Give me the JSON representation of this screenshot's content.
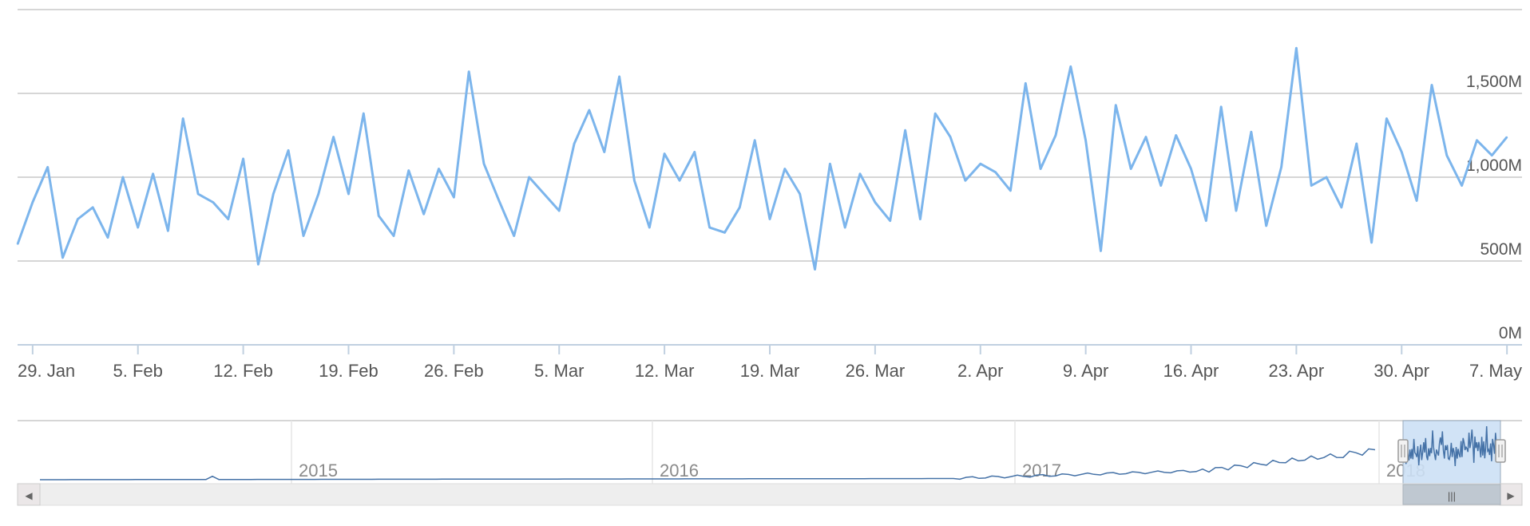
{
  "chart_data": {
    "type": "line",
    "title": "",
    "xlabel": "",
    "ylabel": "",
    "ylim": [
      0,
      2000
    ],
    "grid": true,
    "legend": "none",
    "y_ticks": [
      {
        "value": 0,
        "label": "0M"
      },
      {
        "value": 500,
        "label": "500M"
      },
      {
        "value": 1000,
        "label": "1,000M"
      },
      {
        "value": 1500,
        "label": "1,500M"
      }
    ],
    "x_ticks": [
      {
        "date": "2018-01-29",
        "label": "29. Jan"
      },
      {
        "date": "2018-02-05",
        "label": "5. Feb"
      },
      {
        "date": "2018-02-12",
        "label": "12. Feb"
      },
      {
        "date": "2018-02-19",
        "label": "19. Feb"
      },
      {
        "date": "2018-02-26",
        "label": "26. Feb"
      },
      {
        "date": "2018-03-05",
        "label": "5. Mar"
      },
      {
        "date": "2018-03-12",
        "label": "12. Mar"
      },
      {
        "date": "2018-03-19",
        "label": "19. Mar"
      },
      {
        "date": "2018-03-26",
        "label": "26. Mar"
      },
      {
        "date": "2018-04-02",
        "label": "2. Apr"
      },
      {
        "date": "2018-04-09",
        "label": "9. Apr"
      },
      {
        "date": "2018-04-16",
        "label": "16. Apr"
      },
      {
        "date": "2018-04-23",
        "label": "23. Apr"
      },
      {
        "date": "2018-04-30",
        "label": "30. Apr"
      },
      {
        "date": "2018-05-07",
        "label": "7. May"
      }
    ],
    "x_range": [
      "2018-01-28",
      "2018-05-08"
    ],
    "line_color": "#7cb5ec",
    "series": [
      {
        "values": [
          [
            "2018-01-28",
            600
          ],
          [
            "2018-01-29",
            850
          ],
          [
            "2018-01-30",
            1060
          ],
          [
            "2018-01-31",
            520
          ],
          [
            "2018-02-01",
            750
          ],
          [
            "2018-02-02",
            820
          ],
          [
            "2018-02-03",
            640
          ],
          [
            "2018-02-04",
            1000
          ],
          [
            "2018-02-05",
            700
          ],
          [
            "2018-02-06",
            1020
          ],
          [
            "2018-02-07",
            680
          ],
          [
            "2018-02-08",
            1350
          ],
          [
            "2018-02-09",
            900
          ],
          [
            "2018-02-10",
            850
          ],
          [
            "2018-02-11",
            750
          ],
          [
            "2018-02-12",
            1110
          ],
          [
            "2018-02-13",
            480
          ],
          [
            "2018-02-14",
            900
          ],
          [
            "2018-02-15",
            1160
          ],
          [
            "2018-02-16",
            650
          ],
          [
            "2018-02-17",
            900
          ],
          [
            "2018-02-18",
            1240
          ],
          [
            "2018-02-19",
            900
          ],
          [
            "2018-02-20",
            1380
          ],
          [
            "2018-02-21",
            770
          ],
          [
            "2018-02-22",
            650
          ],
          [
            "2018-02-23",
            1040
          ],
          [
            "2018-02-24",
            780
          ],
          [
            "2018-02-25",
            1050
          ],
          [
            "2018-02-26",
            880
          ],
          [
            "2018-02-27",
            1630
          ],
          [
            "2018-02-28",
            1080
          ],
          [
            "2018-03-01",
            860
          ],
          [
            "2018-03-02",
            650
          ],
          [
            "2018-03-03",
            1000
          ],
          [
            "2018-03-04",
            900
          ],
          [
            "2018-03-05",
            800
          ],
          [
            "2018-03-06",
            1200
          ],
          [
            "2018-03-07",
            1400
          ],
          [
            "2018-03-08",
            1150
          ],
          [
            "2018-03-09",
            1600
          ],
          [
            "2018-03-10",
            980
          ],
          [
            "2018-03-11",
            700
          ],
          [
            "2018-03-12",
            1140
          ],
          [
            "2018-03-13",
            980
          ],
          [
            "2018-03-14",
            1150
          ],
          [
            "2018-03-15",
            700
          ],
          [
            "2018-03-16",
            670
          ],
          [
            "2018-03-17",
            820
          ],
          [
            "2018-03-18",
            1220
          ],
          [
            "2018-03-19",
            750
          ],
          [
            "2018-03-20",
            1050
          ],
          [
            "2018-03-21",
            900
          ],
          [
            "2018-03-22",
            450
          ],
          [
            "2018-03-23",
            1080
          ],
          [
            "2018-03-24",
            700
          ],
          [
            "2018-03-25",
            1020
          ],
          [
            "2018-03-26",
            850
          ],
          [
            "2018-03-27",
            740
          ],
          [
            "2018-03-28",
            1280
          ],
          [
            "2018-03-29",
            750
          ],
          [
            "2018-03-30",
            1380
          ],
          [
            "2018-03-31",
            1240
          ],
          [
            "2018-04-01",
            980
          ],
          [
            "2018-04-02",
            1080
          ],
          [
            "2018-04-03",
            1030
          ],
          [
            "2018-04-04",
            920
          ],
          [
            "2018-04-05",
            1560
          ],
          [
            "2018-04-06",
            1050
          ],
          [
            "2018-04-07",
            1250
          ],
          [
            "2018-04-08",
            1660
          ],
          [
            "2018-04-09",
            1220
          ],
          [
            "2018-04-10",
            560
          ],
          [
            "2018-04-11",
            1430
          ],
          [
            "2018-04-12",
            1050
          ],
          [
            "2018-04-13",
            1240
          ],
          [
            "2018-04-14",
            950
          ],
          [
            "2018-04-15",
            1250
          ],
          [
            "2018-04-16",
            1050
          ],
          [
            "2018-04-17",
            740
          ],
          [
            "2018-04-18",
            1420
          ],
          [
            "2018-04-19",
            800
          ],
          [
            "2018-04-20",
            1270
          ],
          [
            "2018-04-21",
            710
          ],
          [
            "2018-04-22",
            1060
          ],
          [
            "2018-04-23",
            1770
          ],
          [
            "2018-04-24",
            950
          ],
          [
            "2018-04-25",
            1000
          ],
          [
            "2018-04-26",
            820
          ],
          [
            "2018-04-27",
            1200
          ],
          [
            "2018-04-28",
            610
          ],
          [
            "2018-04-29",
            1350
          ],
          [
            "2018-04-30",
            1150
          ],
          [
            "2018-05-01",
            860
          ],
          [
            "2018-05-02",
            1550
          ],
          [
            "2018-05-03",
            1130
          ],
          [
            "2018-05-04",
            950
          ],
          [
            "2018-05-05",
            1220
          ],
          [
            "2018-05-06",
            1130
          ],
          [
            "2018-05-07",
            1240
          ]
        ]
      }
    ]
  },
  "navigator": {
    "year_labels": [
      "2015",
      "2016",
      "2017",
      "2018"
    ],
    "handle_glyph": "|||",
    "scroll_left_glyph": "◀",
    "scroll_right_glyph": "▶",
    "series_color": "#4572a7",
    "selection_color": "#cce0f5"
  }
}
